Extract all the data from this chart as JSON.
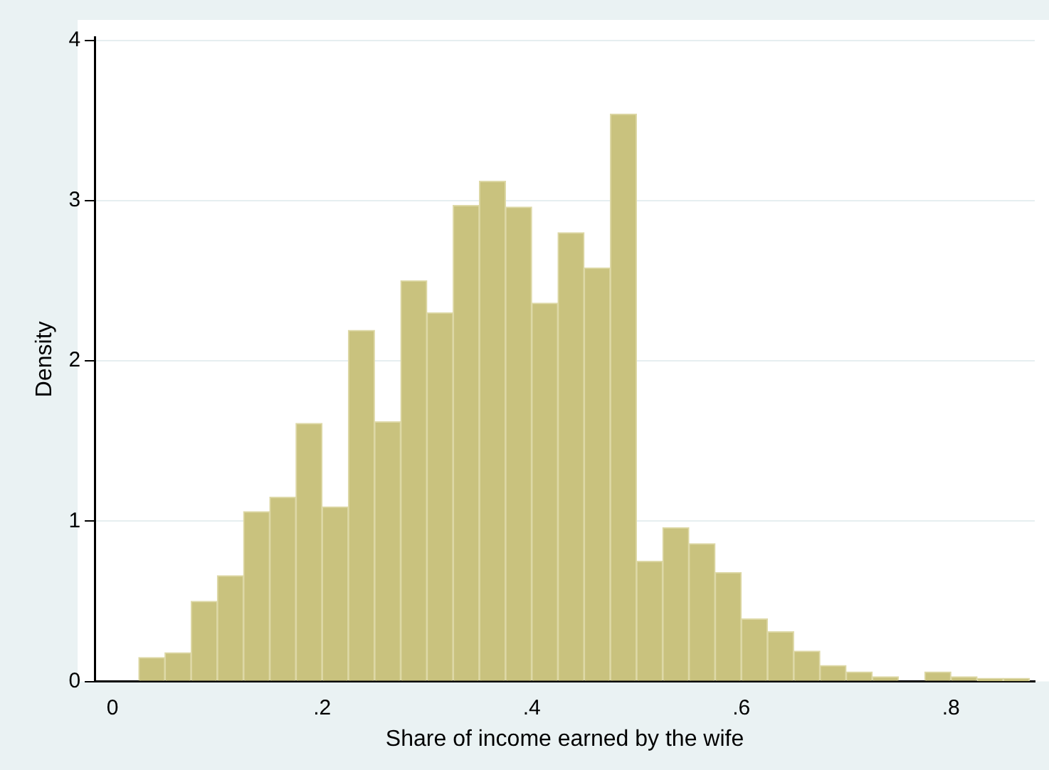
{
  "chart_data": {
    "type": "histogram",
    "xlabel": "Share of income earned by the wife",
    "ylabel": "Density",
    "bins": [
      0.025,
      0.05,
      0.075,
      0.1,
      0.125,
      0.15,
      0.175,
      0.2,
      0.225,
      0.25,
      0.275,
      0.3,
      0.325,
      0.35,
      0.375,
      0.4,
      0.425,
      0.45,
      0.475,
      0.5,
      0.525,
      0.55,
      0.575,
      0.6,
      0.625,
      0.65,
      0.675,
      0.7,
      0.725,
      0.75,
      0.775,
      0.8,
      0.825,
      0.85,
      0.875
    ],
    "values": [
      0.15,
      0.18,
      0.5,
      0.66,
      1.06,
      1.15,
      1.61,
      1.09,
      2.19,
      1.62,
      2.5,
      2.3,
      2.97,
      3.12,
      2.96,
      2.36,
      2.8,
      2.58,
      3.54,
      0.75,
      0.96,
      0.86,
      0.68,
      0.39,
      0.31,
      0.19,
      0.1,
      0.06,
      0.03,
      0,
      0.06,
      0.03,
      0.02,
      0.02
    ],
    "color": "#c9c27e",
    "xlim": [
      -0.017,
      0.88
    ],
    "xticks": [
      0,
      {
        "value": 0.2,
        "label": ".2"
      },
      {
        "value": 0.4,
        "label": ".4"
      },
      {
        "value": 0.6,
        "label": ".6"
      },
      {
        "value": 0.8,
        "label": ".8"
      }
    ],
    "ylim": [
      0,
      4.02
    ],
    "yticks": [
      0,
      1,
      2,
      3,
      4
    ],
    "grid": "y",
    "legend": false
  }
}
